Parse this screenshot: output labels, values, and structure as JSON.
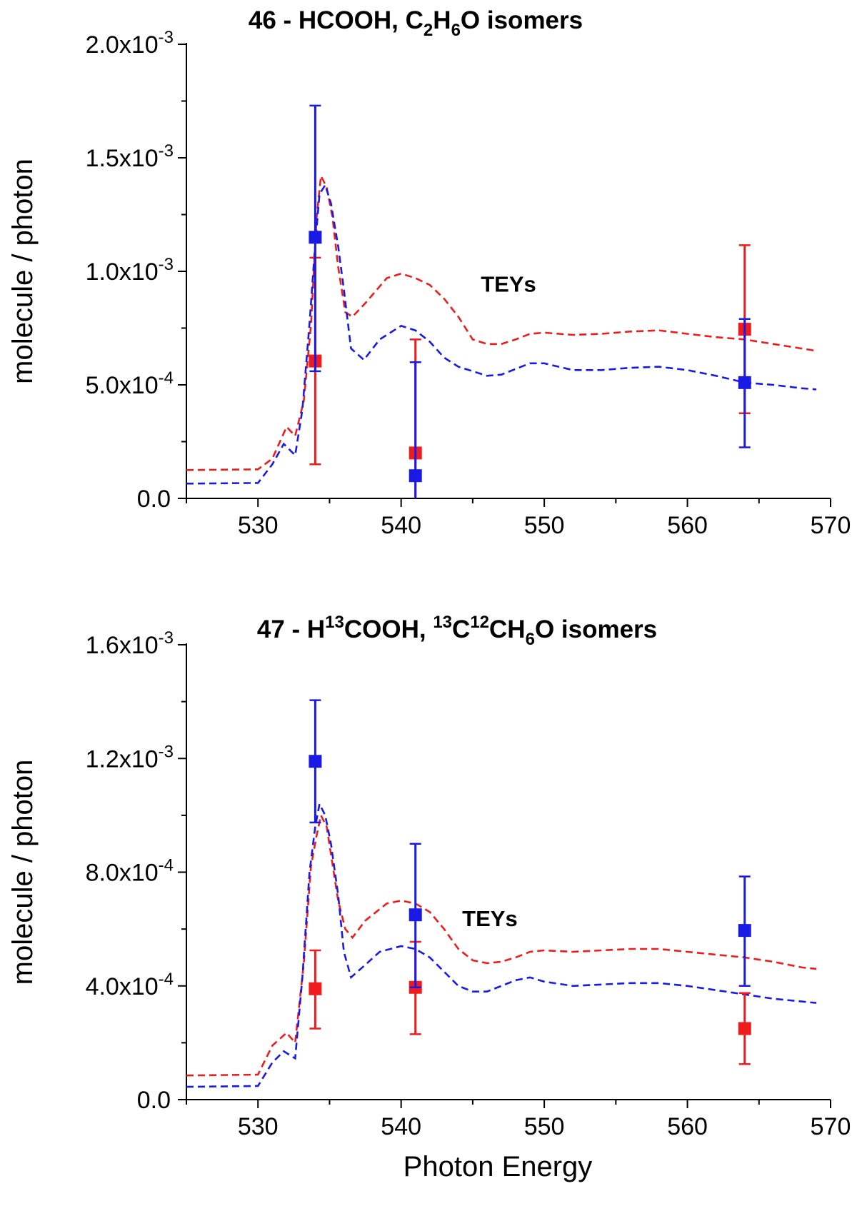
{
  "figure": {
    "xlabel": "Photon Energy"
  },
  "colors": {
    "series1": "#ee1c1c",
    "series2": "#1a1ae6",
    "axis": "#000000"
  },
  "chart_data": [
    {
      "type": "scatter",
      "title": "46 - HCOOH, C2H6O isomers",
      "title_parts": [
        {
          "t": "46 - HCOOH, C",
          "s": "base"
        },
        {
          "t": "2",
          "s": "sub"
        },
        {
          "t": "H",
          "s": "base"
        },
        {
          "t": "6",
          "s": "sub"
        },
        {
          "t": "O isomers",
          "s": "base"
        }
      ],
      "xlabel": "Photon Energy",
      "ylabel": "molecule / photon",
      "xlim": [
        525,
        570
      ],
      "ylim": [
        0,
        0.002
      ],
      "xticks": [
        {
          "value": 530,
          "label": "530"
        },
        {
          "value": 540,
          "label": "540"
        },
        {
          "value": 550,
          "label": "550"
        },
        {
          "value": 560,
          "label": "560"
        },
        {
          "value": 570,
          "label": "570"
        }
      ],
      "yticks": [
        {
          "value": 0,
          "base": "0.0",
          "exp": ""
        },
        {
          "value": 0.0005,
          "base": "5.0x10",
          "exp": "-4"
        },
        {
          "value": 0.001,
          "base": "1.0x10",
          "exp": "-3"
        },
        {
          "value": 0.0015,
          "base": "1.5x10",
          "exp": "-3"
        },
        {
          "value": 0.002,
          "base": "2.0x10",
          "exp": "-3"
        }
      ],
      "annotation": {
        "text": "TEYs",
        "x": 547.5,
        "y": 0.00091
      },
      "lines": [
        {
          "name": "TEY red",
          "color": "#ee1c1c",
          "x": [
            525,
            530,
            531,
            532,
            532.6,
            533.2,
            533.7,
            534.1,
            534.4,
            534.8,
            535.2,
            535.6,
            536.1,
            536.6,
            537.5,
            539,
            540,
            541,
            542,
            543,
            544,
            545,
            546,
            547,
            548,
            549,
            550,
            552,
            554,
            556,
            558,
            560,
            562,
            564,
            566,
            568,
            569
          ],
          "y": [
            0.000125,
            0.000128,
            0.000175,
            0.000315,
            0.000275,
            0.00043,
            0.00076,
            0.00124,
            0.00142,
            0.00137,
            0.00124,
            0.00102,
            0.00082,
            0.0008,
            0.00086,
            0.00097,
            0.00099,
            0.00097,
            0.00094,
            0.00088,
            0.0008,
            0.0007,
            0.00068,
            0.00068,
            0.0007,
            0.000725,
            0.00073,
            0.00072,
            0.000725,
            0.000735,
            0.00074,
            0.000725,
            0.00071,
            0.0007,
            0.00068,
            0.00066,
            0.00065
          ]
        },
        {
          "name": "TEY blue",
          "color": "#1a1ae6",
          "x": [
            525,
            530,
            531,
            531.8,
            532.6,
            533.1,
            533.6,
            534.0,
            534.3,
            534.7,
            535.1,
            535.6,
            536.0,
            536.5,
            537.4,
            538.5,
            540,
            541,
            542,
            543,
            544,
            545,
            546,
            547,
            548,
            549,
            550,
            552,
            554,
            556,
            558,
            560,
            562,
            564,
            566,
            568,
            569
          ],
          "y": [
            6.5e-05,
            6.8e-05,
            0.00015,
            0.00024,
            0.00019,
            0.00039,
            0.00077,
            0.00112,
            0.00134,
            0.00138,
            0.0013,
            0.00111,
            0.00092,
            0.00066,
            0.00061,
            0.0007,
            0.00076,
            0.00074,
            0.00069,
            0.00062,
            0.00058,
            0.00056,
            0.00054,
            0.000545,
            0.00057,
            0.000595,
            0.000595,
            0.000565,
            0.000565,
            0.000575,
            0.00058,
            0.000565,
            0.00054,
            0.00051,
            0.0005,
            0.000485,
            0.00048
          ]
        }
      ],
      "points": [
        {
          "name": "red",
          "color": "#ee1c1c",
          "x": [
            534,
            541,
            564
          ],
          "y": [
            0.000605,
            0.0002,
            0.000745
          ],
          "err_low": [
            0.00015,
            0.0,
            0.000375
          ],
          "err_high": [
            0.00106,
            0.0007,
            0.001115
          ]
        },
        {
          "name": "blue",
          "color": "#1a1ae6",
          "x": [
            534,
            541,
            564
          ],
          "y": [
            0.00115,
            0.0001,
            0.00051
          ],
          "err_low": [
            0.00056,
            null,
            0.000225
          ],
          "err_high": [
            0.00173,
            0.0006,
            0.00079
          ]
        }
      ]
    },
    {
      "type": "scatter",
      "title": "47 - H13COOH, 13C12CH6O isomers",
      "title_parts": [
        {
          "t": "47 - H",
          "s": "base"
        },
        {
          "t": "13",
          "s": "sup"
        },
        {
          "t": "COOH, ",
          "s": "base"
        },
        {
          "t": "13",
          "s": "sup"
        },
        {
          "t": "C",
          "s": "base"
        },
        {
          "t": "12",
          "s": "sup"
        },
        {
          "t": "CH",
          "s": "base"
        },
        {
          "t": "6",
          "s": "sub"
        },
        {
          "t": "O isomers",
          "s": "base"
        }
      ],
      "xlabel": "Photon Energy",
      "ylabel": "molecule / photon",
      "xlim": [
        525,
        570
      ],
      "ylim": [
        0,
        0.0016
      ],
      "xticks": [
        {
          "value": 530,
          "label": "530"
        },
        {
          "value": 540,
          "label": "540"
        },
        {
          "value": 550,
          "label": "550"
        },
        {
          "value": 560,
          "label": "560"
        },
        {
          "value": 570,
          "label": "570"
        }
      ],
      "yticks": [
        {
          "value": 0,
          "base": "0.0",
          "exp": ""
        },
        {
          "value": 0.0004,
          "base": "4.0x10",
          "exp": "-4"
        },
        {
          "value": 0.0008,
          "base": "8.0x10",
          "exp": "-4"
        },
        {
          "value": 0.0012,
          "base": "1.2x10",
          "exp": "-3"
        },
        {
          "value": 0.0016,
          "base": "1.6x10",
          "exp": "-3"
        }
      ],
      "annotation": {
        "text": "TEYs",
        "x": 546.2,
        "y": 0.00061
      },
      "lines": [
        {
          "name": "TEY red",
          "color": "#ee1c1c",
          "x": [
            525,
            530,
            531,
            532,
            532.6,
            533.2,
            533.7,
            534.1,
            534.4,
            534.8,
            535.2,
            535.6,
            536.1,
            536.6,
            537.5,
            539,
            540,
            541,
            542,
            543,
            544,
            545,
            546,
            547,
            548,
            549,
            550,
            552,
            554,
            556,
            558,
            560,
            562,
            564,
            566,
            568,
            569
          ],
          "y": [
            8.5e-05,
            8.8e-05,
            0.00019,
            0.000235,
            0.0002,
            0.00048,
            0.00082,
            0.00093,
            0.001,
            0.00096,
            0.00083,
            0.0007,
            0.0006,
            0.00057,
            0.00063,
            0.00069,
            0.0007,
            0.00069,
            0.00066,
            0.0006,
            0.00053,
            0.00049,
            0.00048,
            0.000485,
            0.0005,
            0.00052,
            0.000525,
            0.00052,
            0.000525,
            0.00053,
            0.00053,
            0.00052,
            0.00051,
            0.0005,
            0.000485,
            0.000465,
            0.00046
          ]
        },
        {
          "name": "TEY blue",
          "color": "#1a1ae6",
          "x": [
            525,
            530,
            531,
            531.8,
            532.6,
            533.1,
            533.6,
            534.0,
            534.3,
            534.7,
            535.1,
            535.6,
            536.0,
            536.5,
            537.4,
            538.5,
            540,
            541,
            542,
            543,
            544,
            545,
            546,
            547,
            548,
            549,
            550,
            552,
            554,
            556,
            558,
            560,
            562,
            564,
            566,
            568,
            569
          ],
          "y": [
            4.5e-05,
            4.8e-05,
            0.00013,
            0.00017,
            0.000145,
            0.00043,
            0.0008,
            0.00096,
            0.00104,
            0.001,
            0.0009,
            0.00072,
            0.00052,
            0.00043,
            0.00047,
            0.00052,
            0.00054,
            0.00053,
            0.0005,
            0.00045,
            0.0004,
            0.00038,
            0.00038,
            0.0004,
            0.00042,
            0.00043,
            0.000415,
            0.0004,
            0.000405,
            0.00041,
            0.00041,
            0.0004,
            0.000385,
            0.00037,
            0.000355,
            0.000345,
            0.00034
          ]
        }
      ],
      "points": [
        {
          "name": "red",
          "color": "#ee1c1c",
          "x": [
            534,
            541,
            564
          ],
          "y": [
            0.00039,
            0.000395,
            0.00025
          ],
          "err_low": [
            0.00025,
            0.00023,
            0.000125
          ],
          "err_high": [
            0.000525,
            0.000555,
            0.000375
          ]
        },
        {
          "name": "blue",
          "color": "#1a1ae6",
          "x": [
            534,
            541,
            564
          ],
          "y": [
            0.00119,
            0.00065,
            0.000595
          ],
          "err_low": [
            0.000975,
            0.000395,
            0.0004
          ],
          "err_high": [
            0.001405,
            0.0009,
            0.000785
          ]
        }
      ]
    }
  ]
}
